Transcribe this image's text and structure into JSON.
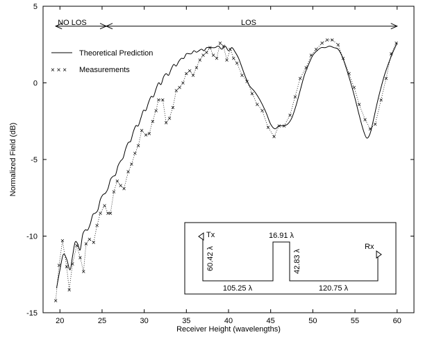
{
  "chart_data": {
    "type": "line",
    "xlabel": "Receiver Height (wavelengths)",
    "ylabel": "Normalized Field (dB)",
    "xlim": [
      18,
      62
    ],
    "ylim": [
      -15,
      5
    ],
    "xticks": [
      20,
      25,
      30,
      35,
      40,
      45,
      50,
      55,
      60
    ],
    "yticks": [
      -15,
      -10,
      -5,
      0,
      5
    ],
    "grid": false,
    "legend_position": "top-left",
    "series": [
      {
        "name": "Theoretical Prediction",
        "style": "solid",
        "x": [
          19.6,
          20.0,
          20.4,
          20.8,
          21.2,
          21.5,
          21.8,
          22.1,
          22.4,
          22.7,
          23.0,
          23.3,
          23.6,
          23.9,
          24.2,
          24.5,
          24.8,
          25.1,
          25.4,
          25.7,
          26.0,
          26.3,
          26.6,
          26.9,
          27.2,
          27.5,
          27.8,
          28.1,
          28.4,
          28.7,
          29.0,
          29.3,
          29.6,
          29.9,
          30.2,
          30.5,
          30.8,
          31.1,
          31.4,
          31.7,
          32.0,
          32.3,
          32.6,
          32.9,
          33.2,
          33.5,
          33.8,
          34.1,
          34.4,
          34.7,
          35.0,
          35.3,
          35.6,
          35.9,
          36.2,
          36.5,
          36.8,
          37.1,
          37.4,
          37.7,
          38.0,
          38.4,
          38.8,
          39.2,
          39.6,
          40.0,
          40.4,
          40.8,
          41.2,
          41.6,
          42.0,
          42.5,
          43.0,
          43.5,
          44.0,
          44.5,
          45.0,
          45.5,
          46.0,
          46.5,
          47.0,
          47.5,
          48.0,
          48.5,
          49.0,
          49.5,
          50.0,
          50.5,
          51.0,
          51.5,
          52.0,
          52.5,
          53.0,
          53.5,
          54.0,
          54.5,
          55.0,
          55.5,
          56.0,
          56.4,
          56.8,
          57.2,
          57.6,
          58.0,
          58.5,
          59.0,
          59.5,
          60.0
        ],
        "y": [
          -13.4,
          -12.2,
          -11.2,
          -11.5,
          -12.2,
          -11.3,
          -10.4,
          -10.5,
          -10.9,
          -9.9,
          -9.6,
          -9.6,
          -9.2,
          -8.6,
          -8.5,
          -8.3,
          -7.6,
          -7.3,
          -7.2,
          -6.9,
          -6.3,
          -6.1,
          -6.0,
          -5.4,
          -5.1,
          -4.9,
          -4.3,
          -3.9,
          -3.8,
          -3.2,
          -2.8,
          -2.8,
          -2.3,
          -1.8,
          -1.8,
          -1.3,
          -0.9,
          -0.9,
          -0.4,
          0.0,
          -0.1,
          0.4,
          0.6,
          0.5,
          0.9,
          1.2,
          1.1,
          1.4,
          1.6,
          1.6,
          1.9,
          1.9,
          1.9,
          2.1,
          2.0,
          2.1,
          2.2,
          2.1,
          2.3,
          2.3,
          2.3,
          2.3,
          2.4,
          2.2,
          2.4,
          2.1,
          2.3,
          2.0,
          1.6,
          1.0,
          0.4,
          -0.2,
          -0.5,
          -0.9,
          -1.4,
          -2.0,
          -2.7,
          -3.0,
          -2.8,
          -2.8,
          -2.7,
          -2.3,
          -1.5,
          -0.5,
          0.5,
          1.2,
          1.8,
          2.1,
          2.3,
          2.3,
          2.4,
          2.3,
          2.2,
          1.7,
          0.9,
          0.0,
          -1.0,
          -2.1,
          -3.1,
          -3.6,
          -3.3,
          -2.4,
          -1.4,
          -0.5,
          0.5,
          1.3,
          2.0,
          2.6
        ]
      },
      {
        "name": "Measurements",
        "style": "x markers joined by dotted line",
        "x": [
          19.5,
          19.9,
          20.3,
          20.8,
          21.1,
          21.5,
          22.0,
          22.4,
          22.8,
          23.1,
          23.5,
          24.0,
          24.4,
          24.8,
          25.3,
          25.7,
          26.0,
          26.4,
          26.8,
          27.2,
          27.6,
          28.1,
          28.5,
          28.9,
          29.3,
          29.7,
          30.2,
          30.6,
          31.0,
          31.4,
          31.7,
          32.2,
          32.6,
          33.0,
          33.4,
          33.8,
          34.2,
          34.6,
          35.0,
          35.4,
          35.8,
          36.2,
          36.6,
          37.0,
          37.4,
          37.8,
          38.2,
          38.6,
          39.0,
          39.4,
          39.8,
          40.2,
          40.6,
          41.0,
          41.6,
          42.2,
          42.8,
          43.4,
          44.0,
          44.7,
          45.4,
          46.0,
          46.6,
          47.3,
          47.9,
          48.5,
          49.2,
          49.8,
          50.4,
          51.1,
          51.7,
          52.3,
          53.0,
          53.6,
          54.3,
          54.9,
          55.5,
          56.2,
          56.8,
          57.4,
          58.1,
          58.7,
          59.3,
          59.9
        ],
        "y": [
          -14.2,
          -11.9,
          -10.3,
          -12.0,
          -13.5,
          -11.8,
          -10.6,
          -11.4,
          -12.3,
          -10.5,
          -10.2,
          -10.4,
          -9.3,
          -8.5,
          -8.0,
          -8.5,
          -8.5,
          -7.1,
          -6.4,
          -6.7,
          -6.9,
          -5.8,
          -5.3,
          -4.6,
          -4.1,
          -3.1,
          -3.4,
          -3.3,
          -2.5,
          -1.8,
          -1.1,
          -1.1,
          -2.6,
          -2.3,
          -1.6,
          -0.5,
          -0.3,
          0.0,
          0.6,
          0.8,
          0.5,
          1.0,
          1.5,
          1.8,
          2.0,
          2.3,
          1.8,
          1.6,
          2.6,
          2.4,
          1.5,
          2.2,
          1.6,
          1.3,
          0.5,
          0.1,
          -0.7,
          -1.4,
          -1.8,
          -2.9,
          -3.5,
          -2.8,
          -2.8,
          -2.1,
          -0.9,
          0.3,
          1.0,
          1.8,
          2.2,
          2.6,
          2.8,
          2.8,
          2.5,
          1.6,
          0.6,
          -0.3,
          -1.4,
          -2.4,
          -3.0,
          -2.7,
          -1.1,
          0.3,
          1.9,
          2.6
        ]
      }
    ],
    "annotations": {
      "no_los": {
        "label": "NO LOS",
        "x_from": 19.5,
        "x_to": 25.5,
        "y": 3.7
      },
      "los": {
        "label": "LOS",
        "x_from": 25.5,
        "x_to": 60.0,
        "y": 3.7
      }
    },
    "legend": {
      "solid_label": "Theoretical Prediction",
      "marker_label": "Measurements",
      "marker_sample": "×  ×  ×"
    },
    "inset": {
      "tx_label": "Tx",
      "rx_label": "Rx",
      "tx_height_label": "60.42 λ",
      "distance1_label": "105.25 λ",
      "obstacle_width_label": "16.91 λ",
      "obstacle_height_label": "42.83 λ",
      "distance2_label": "120.75 λ"
    }
  }
}
